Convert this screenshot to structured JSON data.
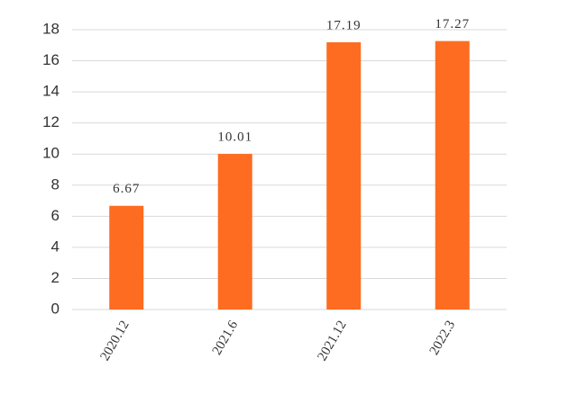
{
  "chart_data": {
    "type": "bar",
    "categories": [
      "2020.12",
      "2021.6",
      "2021.12",
      "2022.3"
    ],
    "values": [
      6.67,
      10.01,
      17.19,
      17.27
    ],
    "color": "#fd6c21",
    "ylim": [
      0,
      18
    ],
    "yticks": [
      0,
      2,
      4,
      6,
      8,
      10,
      12,
      14,
      16,
      18
    ],
    "grid": true
  }
}
